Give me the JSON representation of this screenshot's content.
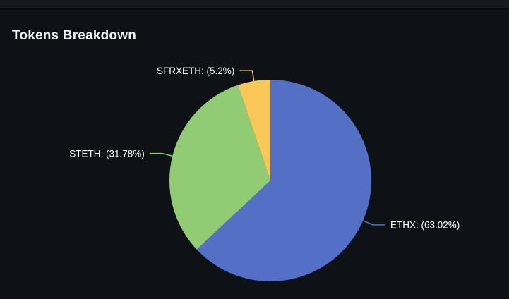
{
  "page": {
    "background": "#0e1217",
    "topbar_color": "#161a20"
  },
  "header": {
    "title": "Tokens Breakdown"
  },
  "chart_data": {
    "type": "pie",
    "title": "Tokens Breakdown",
    "legend_position": "none",
    "labels_outside": true,
    "label_color": "#ffffff",
    "start_angle_deg": 0,
    "direction": "clockwise",
    "center": [
      383,
      256
    ],
    "radius": 143,
    "slices": [
      {
        "name": "ETHX",
        "label": "ETHX: (63.02%)",
        "value": 63.02,
        "color": "#5470c6"
      },
      {
        "name": "STETH",
        "label": "STETH: (31.78%)",
        "value": 31.78,
        "color": "#91cc75"
      },
      {
        "name": "SFRXETH",
        "label": "SFRXETH: (5.2%)",
        "value": 5.2,
        "color": "#fac858"
      }
    ]
  }
}
